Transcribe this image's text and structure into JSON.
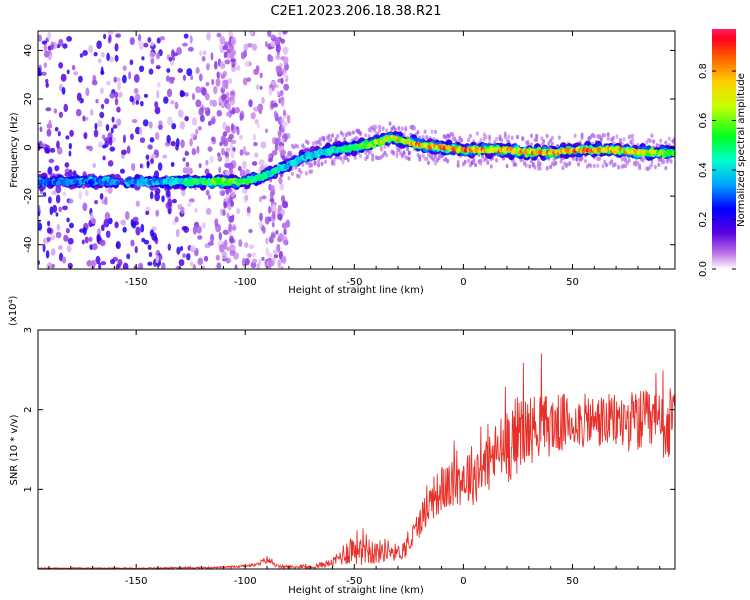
{
  "title": "C2E1.2023.206.18.38.R21",
  "colors": {
    "snr_line": "#e8302a",
    "axis": "#000000"
  },
  "chart_data": [
    {
      "type": "heatmap",
      "title": "C2E1.2023.206.18.38.R21",
      "xlabel": "Height of straight line (km)",
      "ylabel": "Frequency (Hz)",
      "xlim": [
        -195,
        97
      ],
      "ylim": [
        -50,
        48
      ],
      "xticks": [
        -150,
        -100,
        -50,
        0,
        50
      ],
      "xtick_labels": [
        "-150",
        "-100",
        "-50",
        "0",
        "50"
      ],
      "yticks": [
        -40,
        -20,
        0,
        20,
        40
      ],
      "ytick_labels": [
        "-40",
        "-20",
        "0",
        "20",
        "40"
      ],
      "colorbar": {
        "label": "Normalized spectral amplitude",
        "colormap": "rainbow (violet→blue→cyan→green→yellow→orange→red)",
        "range": [
          0,
          0.97
        ],
        "ticks": [
          0.0,
          0.2,
          0.4,
          0.6,
          0.8
        ],
        "tick_labels": [
          "0.0",
          "0.2",
          "0.4",
          "0.6",
          "0.8"
        ]
      },
      "ridge": {
        "x": [
          -195,
          -180,
          -160,
          -140,
          -125,
          -110,
          -100,
          -92,
          -85,
          -78,
          -70,
          -60,
          -50,
          -40,
          -33,
          -28,
          -20,
          -10,
          0,
          10,
          20,
          30,
          40,
          50,
          60,
          70,
          80,
          90,
          97
        ],
        "y": [
          -14,
          -14,
          -14,
          -14,
          -14,
          -14,
          -14,
          -12,
          -9,
          -6,
          -3,
          -1,
          0,
          2,
          4,
          3,
          1,
          0,
          -1,
          -1,
          -1,
          -2,
          -2,
          -1,
          -1,
          -1,
          -2,
          -2,
          -2
        ],
        "amplitude": [
          0.35,
          0.35,
          0.38,
          0.4,
          0.55,
          0.7,
          0.6,
          0.55,
          0.5,
          0.45,
          0.45,
          0.5,
          0.6,
          0.7,
          0.85,
          0.8,
          0.9,
          0.95,
          0.95,
          0.9,
          0.85,
          0.9,
          0.9,
          0.95,
          0.9,
          0.85,
          0.8,
          0.75,
          0.6
        ]
      },
      "noise_region_x": [
        -195,
        -80
      ]
    },
    {
      "type": "line",
      "xlabel": "Height of straight line (km)",
      "ylabel": "SNR (10 * v/v)",
      "y_multiplier": "(x10⁴)",
      "xlim": [
        -195,
        97
      ],
      "ylim": [
        0,
        3
      ],
      "xticks": [
        -150,
        -100,
        -50,
        0,
        50
      ],
      "xtick_labels": [
        "-150",
        "-100",
        "-50",
        "0",
        "50"
      ],
      "yticks": [
        1,
        2,
        3
      ],
      "ytick_labels": [
        "1",
        "2",
        "3"
      ],
      "series": [
        {
          "values_env": {
            "x": [
              -195,
              -150,
              -110,
              -95,
              -90,
              -85,
              -70,
              -60,
              -52,
              -45,
              -40,
              -35,
              -30,
              -25,
              -20,
              -15,
              -10,
              -5,
              0,
              5,
              10,
              15,
              20,
              25,
              30,
              35,
              40,
              50,
              60,
              70,
              80,
              90,
              97
            ],
            "mean": [
              0.01,
              0.01,
              0.02,
              0.05,
              0.12,
              0.03,
              0.02,
              0.08,
              0.25,
              0.3,
              0.2,
              0.25,
              0.2,
              0.3,
              0.6,
              0.85,
              1.0,
              1.05,
              1.15,
              1.2,
              1.3,
              1.45,
              1.55,
              1.7,
              1.75,
              1.8,
              1.8,
              1.85,
              1.85,
              1.85,
              1.85,
              1.8,
              1.8
            ],
            "spread": [
              0.005,
              0.005,
              0.01,
              0.02,
              0.05,
              0.02,
              0.02,
              0.05,
              0.2,
              0.25,
              0.15,
              0.15,
              0.1,
              0.15,
              0.2,
              0.25,
              0.3,
              0.3,
              0.35,
              0.4,
              0.4,
              0.4,
              0.5,
              0.5,
              0.45,
              0.4,
              0.4,
              0.35,
              0.35,
              0.35,
              0.4,
              0.45,
              0.5
            ]
          }
        }
      ]
    }
  ]
}
